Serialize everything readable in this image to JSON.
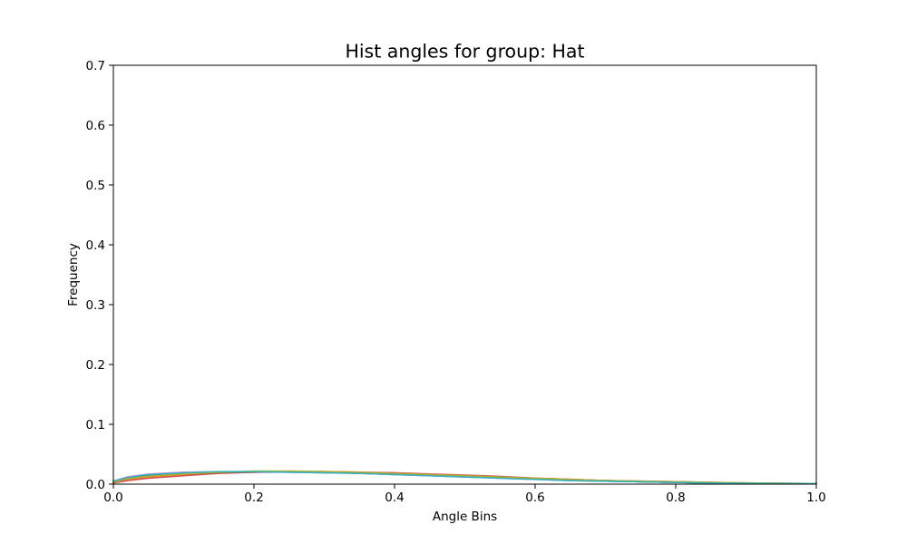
{
  "chart_data": {
    "type": "line",
    "title": "Hist angles for group: Hat",
    "xlabel": "Angle Bins",
    "ylabel": "Frequency",
    "xlim": [
      0.0,
      1.0
    ],
    "ylim": [
      0.0,
      0.7
    ],
    "grid": false,
    "legend": "none",
    "x_ticks": [
      0.0,
      0.2,
      0.4,
      0.6,
      0.8,
      1.0
    ],
    "x_tick_labels": [
      "0.0",
      "0.2",
      "0.4",
      "0.6",
      "0.8",
      "1.0"
    ],
    "y_ticks": [
      0.0,
      0.1,
      0.2,
      0.3,
      0.4,
      0.5,
      0.6,
      0.7
    ],
    "y_tick_labels": [
      "0.0",
      "0.1",
      "0.2",
      "0.3",
      "0.4",
      "0.5",
      "0.6",
      "0.7"
    ],
    "x": [
      0.0,
      0.02,
      0.05,
      0.1,
      0.15,
      0.2,
      0.25,
      0.3,
      0.35,
      0.4,
      0.45,
      0.5,
      0.55,
      0.6,
      0.65,
      0.7,
      0.75,
      0.8,
      0.85,
      0.9,
      0.95,
      1.0
    ],
    "series": [
      {
        "color": "#1f77b4",
        "values": [
          0.004,
          0.011,
          0.015,
          0.019,
          0.02,
          0.021,
          0.021,
          0.02,
          0.019,
          0.017,
          0.015,
          0.013,
          0.011,
          0.009,
          0.007,
          0.006,
          0.004,
          0.003,
          0.002,
          0.0015,
          0.001,
          0.001
        ]
      },
      {
        "color": "#ff7f0e",
        "values": [
          0.003,
          0.008,
          0.012,
          0.016,
          0.019,
          0.021,
          0.021,
          0.021,
          0.02,
          0.018,
          0.016,
          0.014,
          0.012,
          0.01,
          0.008,
          0.006,
          0.005,
          0.004,
          0.003,
          0.002,
          0.0015,
          0.001
        ]
      },
      {
        "color": "#2ca02c",
        "values": [
          0.004,
          0.01,
          0.014,
          0.018,
          0.02,
          0.021,
          0.021,
          0.02,
          0.019,
          0.017,
          0.015,
          0.013,
          0.011,
          0.009,
          0.007,
          0.005,
          0.004,
          0.003,
          0.002,
          0.0015,
          0.001,
          0.001
        ]
      },
      {
        "color": "#d62728",
        "values": [
          0.002,
          0.006,
          0.01,
          0.014,
          0.018,
          0.02,
          0.021,
          0.021,
          0.02,
          0.019,
          0.017,
          0.015,
          0.013,
          0.01,
          0.008,
          0.006,
          0.005,
          0.004,
          0.003,
          0.002,
          0.0015,
          0.001
        ]
      },
      {
        "color": "#9467bd",
        "values": [
          0.005,
          0.012,
          0.016,
          0.019,
          0.02,
          0.02,
          0.02,
          0.019,
          0.018,
          0.016,
          0.014,
          0.012,
          0.01,
          0.008,
          0.006,
          0.005,
          0.004,
          0.003,
          0.002,
          0.0015,
          0.001,
          0.001
        ]
      },
      {
        "color": "#8c564b",
        "values": [
          0.003,
          0.009,
          0.013,
          0.017,
          0.019,
          0.02,
          0.021,
          0.02,
          0.019,
          0.018,
          0.016,
          0.014,
          0.012,
          0.009,
          0.007,
          0.006,
          0.004,
          0.003,
          0.002,
          0.0015,
          0.001,
          0.001
        ]
      },
      {
        "color": "#e377c2",
        "values": [
          0.005,
          0.012,
          0.017,
          0.02,
          0.021,
          0.021,
          0.02,
          0.019,
          0.018,
          0.016,
          0.014,
          0.012,
          0.01,
          0.008,
          0.006,
          0.005,
          0.004,
          0.003,
          0.002,
          0.0015,
          0.001,
          0.001
        ]
      },
      {
        "color": "#7f7f7f",
        "values": [
          0.004,
          0.01,
          0.015,
          0.018,
          0.02,
          0.021,
          0.021,
          0.02,
          0.018,
          0.017,
          0.015,
          0.013,
          0.011,
          0.009,
          0.007,
          0.005,
          0.004,
          0.003,
          0.002,
          0.0015,
          0.001,
          0.001
        ]
      },
      {
        "color": "#bcbd22",
        "values": [
          0.003,
          0.009,
          0.013,
          0.017,
          0.02,
          0.022,
          0.022,
          0.021,
          0.02,
          0.018,
          0.016,
          0.014,
          0.012,
          0.01,
          0.008,
          0.006,
          0.005,
          0.004,
          0.003,
          0.002,
          0.0015,
          0.001
        ]
      },
      {
        "color": "#17becf",
        "values": [
          0.005,
          0.011,
          0.016,
          0.019,
          0.021,
          0.021,
          0.02,
          0.019,
          0.018,
          0.016,
          0.014,
          0.012,
          0.01,
          0.008,
          0.006,
          0.005,
          0.004,
          0.003,
          0.002,
          0.0015,
          0.001,
          0.001
        ]
      }
    ]
  }
}
